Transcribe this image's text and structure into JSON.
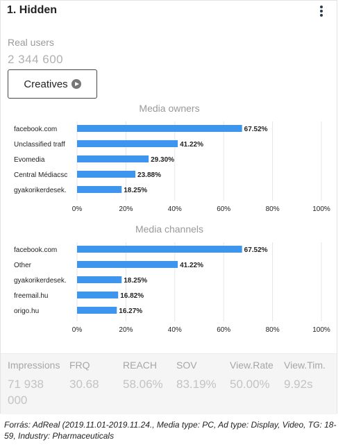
{
  "card": {
    "title": "1. Hidden",
    "real_users_label": "Real users",
    "real_users_value": "2 344 600",
    "creatives_label": "Creatives"
  },
  "colors": {
    "bar": "#3d95ee",
    "grid": "#e6e6e6",
    "text": "#222222",
    "muted": "#999999"
  },
  "chart_data": [
    {
      "type": "bar",
      "orientation": "horizontal",
      "title": "Media owners",
      "categories": [
        "facebook.com",
        "Unclassified traff",
        "Evomedia",
        "Central Médiacsc",
        "gyakorikerdesek."
      ],
      "values": [
        67.52,
        41.22,
        29.3,
        23.88,
        18.25
      ],
      "value_labels": [
        "67.52%",
        "41.22%",
        "29.30%",
        "23.88%",
        "18.25%"
      ],
      "ticks": [
        "0%",
        "20%",
        "40%",
        "60%",
        "80%",
        "100%"
      ],
      "xlim": [
        0,
        100
      ],
      "grid": true
    },
    {
      "type": "bar",
      "orientation": "horizontal",
      "title": "Media channels",
      "categories": [
        "facebook.com",
        "Other",
        "gyakorikerdesek.",
        "freemail.hu",
        "origo.hu"
      ],
      "values": [
        67.52,
        41.22,
        18.25,
        16.82,
        16.27
      ],
      "value_labels": [
        "67.52%",
        "41.22%",
        "18.25%",
        "16.82%",
        "16.27%"
      ],
      "ticks": [
        "0%",
        "20%",
        "40%",
        "60%",
        "80%",
        "100%"
      ],
      "xlim": [
        0,
        100
      ],
      "grid": true
    }
  ],
  "stats": [
    {
      "label": "Impressions",
      "value": "71 938 000"
    },
    {
      "label": "FRQ",
      "value": "30.68"
    },
    {
      "label": "REACH",
      "value": "58.06%"
    },
    {
      "label": "SOV",
      "value": "83.19%"
    },
    {
      "label": "View.Rate",
      "value": "50.00%"
    },
    {
      "label": "View.Tim.",
      "value": "9.92s"
    }
  ],
  "source": "Forrás: AdReal (2019.11.01-2019.11.24., Media type: PC, Ad type: Display, Video, TG: 18-59, Industry: Pharmaceuticals"
}
